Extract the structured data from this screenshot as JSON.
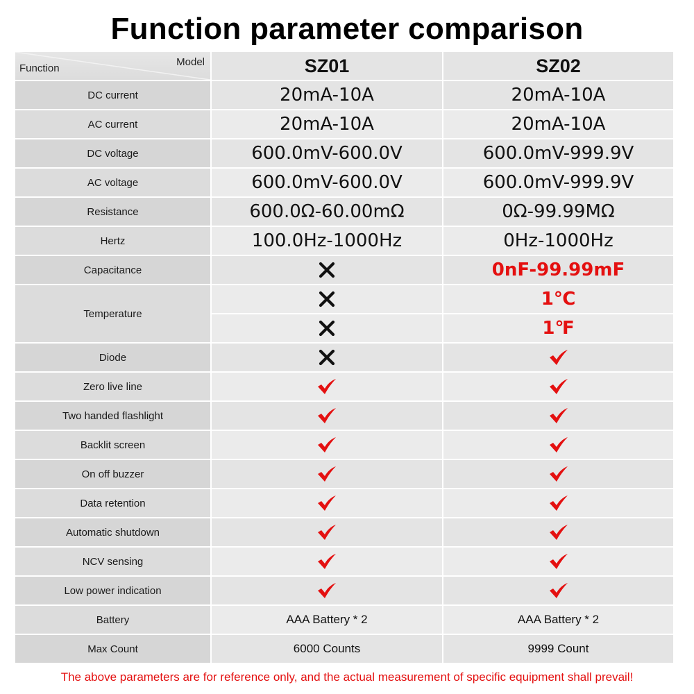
{
  "title": "Function parameter comparison",
  "header": {
    "function_label": "Function",
    "model_label": "Model",
    "models": [
      "SZ01",
      "SZ02"
    ]
  },
  "colors": {
    "accent_red": "#e41010",
    "cross_black": "#111111"
  },
  "rows": [
    {
      "name": "DC current",
      "cells": [
        {
          "type": "text",
          "value": "20mA-10A"
        },
        {
          "type": "text",
          "value": "20mA-10A"
        }
      ]
    },
    {
      "name": "AC current",
      "cells": [
        {
          "type": "text",
          "value": "20mA-10A"
        },
        {
          "type": "text",
          "value": "20mA-10A"
        }
      ]
    },
    {
      "name": "DC voltage",
      "cells": [
        {
          "type": "text",
          "value": "600.0mV-600.0V"
        },
        {
          "type": "text",
          "value": "600.0mV-999.9V"
        }
      ]
    },
    {
      "name": "AC voltage",
      "cells": [
        {
          "type": "text",
          "value": "600.0mV-600.0V"
        },
        {
          "type": "text",
          "value": "600.0mV-999.9V"
        }
      ]
    },
    {
      "name": "Resistance",
      "cells": [
        {
          "type": "text",
          "value": "600.0Ω-60.00mΩ"
        },
        {
          "type": "text",
          "value": "0Ω-99.99MΩ"
        }
      ]
    },
    {
      "name": "Hertz",
      "cells": [
        {
          "type": "text",
          "value": "100.0Hz-1000Hz"
        },
        {
          "type": "text",
          "value": "0Hz-1000Hz"
        }
      ]
    },
    {
      "name": "Capacitance",
      "cells": [
        {
          "type": "cross"
        },
        {
          "type": "red",
          "value": "0nF-99.99mF"
        }
      ]
    },
    {
      "name": "Temperature",
      "span": 2,
      "sub": [
        [
          {
            "type": "cross"
          },
          {
            "type": "red",
            "value": "1℃"
          }
        ],
        [
          {
            "type": "cross"
          },
          {
            "type": "red",
            "value": "1℉"
          }
        ]
      ]
    },
    {
      "name": "Diode",
      "cells": [
        {
          "type": "cross"
        },
        {
          "type": "check"
        }
      ]
    },
    {
      "name": "Zero live line",
      "cells": [
        {
          "type": "check"
        },
        {
          "type": "check"
        }
      ]
    },
    {
      "name": "Two handed flashlight",
      "cells": [
        {
          "type": "check"
        },
        {
          "type": "check"
        }
      ]
    },
    {
      "name": "Backlit screen",
      "cells": [
        {
          "type": "check"
        },
        {
          "type": "check"
        }
      ]
    },
    {
      "name": "On off buzzer",
      "cells": [
        {
          "type": "check"
        },
        {
          "type": "check"
        }
      ]
    },
    {
      "name": "Data retention",
      "cells": [
        {
          "type": "check"
        },
        {
          "type": "check"
        }
      ]
    },
    {
      "name": "Automatic shutdown",
      "cells": [
        {
          "type": "check"
        },
        {
          "type": "check"
        }
      ]
    },
    {
      "name": "NCV sensing",
      "cells": [
        {
          "type": "check"
        },
        {
          "type": "check"
        }
      ]
    },
    {
      "name": "Low power indication",
      "cells": [
        {
          "type": "check"
        },
        {
          "type": "check"
        }
      ]
    },
    {
      "name": "Battery",
      "cells": [
        {
          "type": "small",
          "value": "AAA Battery * 2"
        },
        {
          "type": "small",
          "value": "AAA Battery * 2"
        }
      ]
    },
    {
      "name": "Max Count",
      "cells": [
        {
          "type": "small",
          "value": "6000 Counts"
        },
        {
          "type": "small",
          "value": "9999 Count"
        }
      ]
    }
  ],
  "footer": "The above parameters are for reference only, and the actual measurement of specific equipment shall prevail!"
}
